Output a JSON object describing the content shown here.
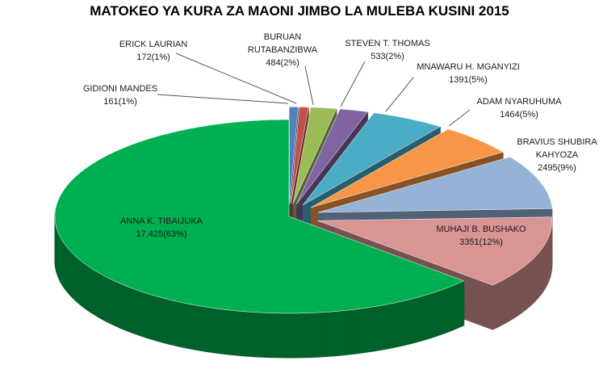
{
  "chart_data": {
    "type": "pie",
    "title": "MATOKEO  YA KURA ZA MAONI JIMBO LA MULEBA KUSINI 2015",
    "categories": [
      "GIDIONI MANDES",
      "ERICK LAURIAN",
      "BURUAN RUTABANZIBWA",
      "STEVEN T. THOMAS",
      "MNAWARU H. MGANYIZI",
      "ADAM NYARUHUMA",
      "BRAVIUS  SHUBIRA KAHYOZA",
      "MUHAJI B. BUSHAKO",
      "ANNA K. TIBAIJUKA"
    ],
    "values": [
      161,
      172,
      484,
      533,
      1391,
      1464,
      2495,
      3351,
      17425
    ],
    "value_labels": [
      "161(1%)",
      "172(1%)",
      "484(2%)",
      "533(2%)",
      "1391(5%)",
      "1464(5%)",
      "2495(9%)",
      "3351(12%)",
      "17,425(63%)"
    ],
    "colors": [
      "#4f81bd",
      "#c0504d",
      "#9bbb59",
      "#8064a2",
      "#4bacc6",
      "#f79646",
      "#95b3d7",
      "#d99594",
      "#00b050"
    ]
  }
}
